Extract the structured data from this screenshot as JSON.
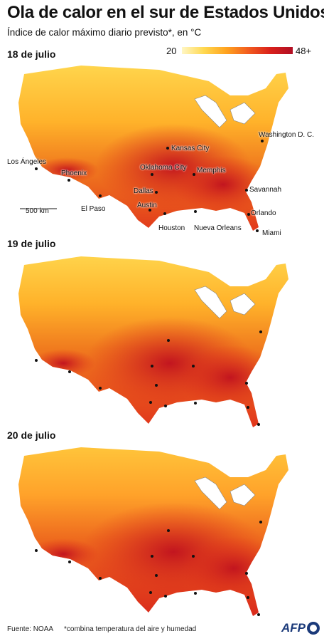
{
  "title": "Ola de calor en el sur de Estados Unidos",
  "subtitle": "Índice de calor máximo diario previsto*, en °C",
  "legend": {
    "min": "20",
    "max": "48+"
  },
  "maps": [
    {
      "date": "18 de julio"
    },
    {
      "date": "19 de julio"
    },
    {
      "date": "20 de julio"
    }
  ],
  "scale_label": "500 km",
  "cities": {
    "kansas_city": "Kansas City",
    "washington": "Washington D. C.",
    "los_angeles": "Los Ángeles",
    "oklahoma_city": "Oklahoma City",
    "memphis": "Memphis",
    "phoenix": "Phoenix",
    "dallas": "Dallas",
    "savannah": "Savannah",
    "el_paso": "El Paso",
    "austin": "Austin",
    "orlando": "Orlando",
    "houston": "Houston",
    "new_orleans": "Nueva Orleans",
    "miami": "Miami"
  },
  "footer": {
    "source": "Fuente: NOAA",
    "note": "*combina temperatura del aire y humedad",
    "brand": "AFP"
  },
  "colors": {
    "cool": "#ffd84f",
    "warm": "#f5801f",
    "hot": "#e0321b",
    "hottest": "#c2151f"
  }
}
